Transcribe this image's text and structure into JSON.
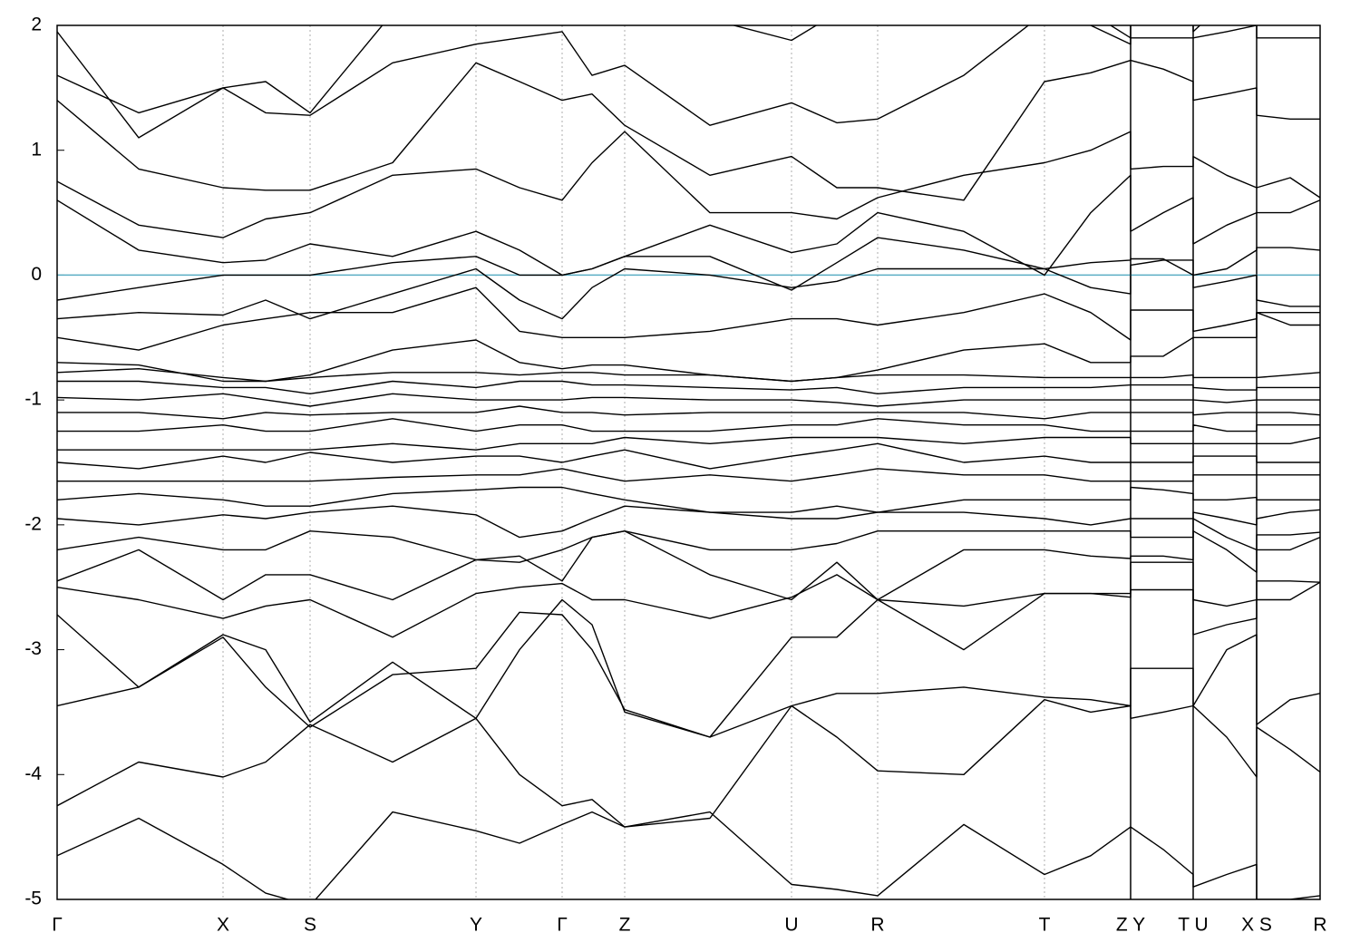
{
  "chart_data": {
    "type": "line",
    "x": [
      0,
      0.9,
      1.83,
      2.3,
      2.79,
      3.7,
      4.62,
      5.1,
      5.57,
      5.9,
      6.26,
      7.2,
      8.1,
      8.6,
      9.05,
      10.0,
      10.89,
      11.4,
      11.84,
      11.84,
      12.2,
      12.53,
      12.53,
      12.9,
      13.23,
      13.23,
      13.6,
      13.93
    ],
    "xlim": [
      0,
      13.93
    ],
    "xticks": [
      {
        "value": 0,
        "label": "Γ"
      },
      {
        "value": 1.83,
        "label": "X"
      },
      {
        "value": 2.79,
        "label": "S"
      },
      {
        "value": 4.62,
        "label": "Y"
      },
      {
        "value": 5.57,
        "label": "Γ"
      },
      {
        "value": 6.26,
        "label": "Z"
      },
      {
        "value": 8.1,
        "label": "U"
      },
      {
        "value": 9.05,
        "label": "R"
      },
      {
        "value": 10.89,
        "label": "T"
      },
      {
        "value": 11.84,
        "label": "Z Y"
      },
      {
        "value": 12.53,
        "label": "T U"
      },
      {
        "value": 13.23,
        "label": "X S"
      },
      {
        "value": 13.93,
        "label": "R"
      }
    ],
    "breaks": [
      11.84,
      12.53,
      13.23
    ],
    "ylim": [
      -5,
      2
    ],
    "yticks": [
      -5,
      -4,
      -3,
      -2,
      -1,
      0,
      1,
      2
    ],
    "grid": true,
    "hline": {
      "value": 0,
      "color": "#5aaec4"
    },
    "series": [
      {
        "color": "#000000",
        "values": [
          -4.65,
          -4.35,
          -4.72,
          -4.95,
          -5.05,
          -4.3,
          -4.45,
          -4.55,
          -4.4,
          -4.3,
          -4.42,
          -4.3,
          -4.88,
          -4.92,
          -4.97,
          -4.4,
          -4.8,
          -4.65,
          -4.42,
          -4.42,
          -4.6,
          -4.8,
          -4.9,
          -4.8,
          -4.72,
          -5.0,
          -5.0,
          -4.97
        ]
      },
      {
        "color": "#000000",
        "values": [
          -4.25,
          -3.9,
          -4.02,
          -3.9,
          -3.6,
          -3.9,
          -3.55,
          -4.0,
          -4.25,
          -4.2,
          -4.42,
          -4.35,
          -3.45,
          -3.7,
          -3.97,
          -4.0,
          -3.4,
          -3.5,
          -3.45,
          -3.55,
          -3.5,
          -3.45,
          -3.45,
          -3.0,
          -2.88,
          -3.6,
          -3.4,
          -3.35
        ]
      },
      {
        "color": "#000000",
        "values": [
          -3.45,
          -3.3,
          -2.9,
          -3.3,
          -3.62,
          -3.2,
          -3.15,
          -2.7,
          -2.72,
          -3.0,
          -3.48,
          -3.7,
          -3.45,
          -3.35,
          -3.35,
          -3.3,
          -3.38,
          -3.4,
          -3.45,
          -3.15,
          -3.15,
          -3.15,
          -3.45,
          -3.7,
          -4.02,
          -3.62,
          -3.8,
          -3.98
        ]
      },
      {
        "color": "#000000",
        "values": [
          -2.72,
          -3.3,
          -2.88,
          -3.0,
          -3.58,
          -3.1,
          -3.55,
          -3.0,
          -2.6,
          -2.8,
          -3.5,
          -3.7,
          -2.9,
          -2.9,
          -2.6,
          -3.0,
          -2.55,
          -2.55,
          -2.55,
          -2.52,
          -2.52,
          -2.52,
          -2.88,
          -2.8,
          -2.75,
          -2.45,
          -2.45,
          -2.46
        ]
      },
      {
        "color": "#000000",
        "values": [
          -2.5,
          -2.6,
          -2.75,
          -2.65,
          -2.6,
          -2.9,
          -2.55,
          -2.5,
          -2.47,
          -2.6,
          -2.6,
          -2.75,
          -2.58,
          -2.4,
          -2.6,
          -2.65,
          -2.55,
          -2.55,
          -2.58,
          -2.3,
          -2.3,
          -2.3,
          -2.6,
          -2.65,
          -2.6,
          -2.6,
          -2.6,
          -2.46
        ]
      },
      {
        "color": "#000000",
        "values": [
          -2.45,
          -2.2,
          -2.6,
          -2.4,
          -2.4,
          -2.6,
          -2.28,
          -2.25,
          -2.45,
          -2.1,
          -2.05,
          -2.4,
          -2.6,
          -2.3,
          -2.6,
          -2.2,
          -2.2,
          -2.25,
          -2.27,
          -2.25,
          -2.25,
          -2.28,
          -2.05,
          -2.2,
          -2.38,
          -2.2,
          -2.2,
          -2.1
        ]
      },
      {
        "color": "#000000",
        "values": [
          -2.2,
          -2.1,
          -2.2,
          -2.2,
          -2.05,
          -2.1,
          -2.28,
          -2.3,
          -2.2,
          -2.1,
          -2.05,
          -2.2,
          -2.2,
          -2.15,
          -2.05,
          -2.05,
          -2.05,
          -2.05,
          -2.05,
          -2.1,
          -2.1,
          -2.1,
          -1.95,
          -2.1,
          -2.2,
          -2.08,
          -2.08,
          -2.06
        ]
      },
      {
        "color": "#000000",
        "values": [
          -1.95,
          -2.0,
          -1.92,
          -1.95,
          -1.9,
          -1.85,
          -1.92,
          -2.1,
          -2.05,
          -1.95,
          -1.85,
          -1.9,
          -1.95,
          -1.95,
          -1.9,
          -1.9,
          -1.95,
          -2.0,
          -1.95,
          -1.95,
          -1.95,
          -1.95,
          -1.9,
          -1.95,
          -2.0,
          -1.95,
          -1.9,
          -1.88
        ]
      },
      {
        "color": "#000000",
        "values": [
          -1.8,
          -1.75,
          -1.8,
          -1.85,
          -1.85,
          -1.75,
          -1.72,
          -1.7,
          -1.7,
          -1.75,
          -1.8,
          -1.9,
          -1.9,
          -1.85,
          -1.9,
          -1.8,
          -1.8,
          -1.8,
          -1.8,
          -1.7,
          -1.72,
          -1.75,
          -1.8,
          -1.8,
          -1.78,
          -1.8,
          -1.8,
          -1.8
        ]
      },
      {
        "color": "#000000",
        "values": [
          -1.65,
          -1.65,
          -1.65,
          -1.65,
          -1.65,
          -1.62,
          -1.6,
          -1.6,
          -1.55,
          -1.6,
          -1.65,
          -1.6,
          -1.65,
          -1.6,
          -1.55,
          -1.6,
          -1.6,
          -1.65,
          -1.65,
          -1.65,
          -1.65,
          -1.65,
          -1.6,
          -1.6,
          -1.6,
          -1.6,
          -1.6,
          -1.6
        ]
      },
      {
        "color": "#000000",
        "values": [
          -1.5,
          -1.55,
          -1.45,
          -1.5,
          -1.42,
          -1.5,
          -1.45,
          -1.45,
          -1.5,
          -1.45,
          -1.4,
          -1.55,
          -1.45,
          -1.4,
          -1.35,
          -1.5,
          -1.45,
          -1.5,
          -1.5,
          -1.5,
          -1.5,
          -1.5,
          -1.45,
          -1.45,
          -1.45,
          -1.5,
          -1.5,
          -1.5
        ]
      },
      {
        "color": "#000000",
        "values": [
          -1.4,
          -1.4,
          -1.4,
          -1.4,
          -1.4,
          -1.35,
          -1.4,
          -1.35,
          -1.35,
          -1.35,
          -1.3,
          -1.35,
          -1.3,
          -1.3,
          -1.3,
          -1.35,
          -1.3,
          -1.3,
          -1.3,
          -1.35,
          -1.35,
          -1.35,
          -1.35,
          -1.35,
          -1.35,
          -1.35,
          -1.35,
          -1.3
        ]
      },
      {
        "color": "#000000",
        "values": [
          -1.25,
          -1.25,
          -1.2,
          -1.25,
          -1.25,
          -1.15,
          -1.25,
          -1.2,
          -1.2,
          -1.25,
          -1.25,
          -1.25,
          -1.2,
          -1.2,
          -1.15,
          -1.2,
          -1.2,
          -1.25,
          -1.25,
          -1.25,
          -1.25,
          -1.25,
          -1.2,
          -1.25,
          -1.25,
          -1.2,
          -1.2,
          -1.2
        ]
      },
      {
        "color": "#000000",
        "values": [
          -1.1,
          -1.1,
          -1.15,
          -1.1,
          -1.12,
          -1.1,
          -1.1,
          -1.05,
          -1.1,
          -1.1,
          -1.12,
          -1.1,
          -1.1,
          -1.1,
          -1.1,
          -1.1,
          -1.15,
          -1.1,
          -1.1,
          -1.1,
          -1.1,
          -1.1,
          -1.12,
          -1.1,
          -1.1,
          -1.1,
          -1.1,
          -1.12
        ]
      },
      {
        "color": "#000000",
        "values": [
          -0.98,
          -1.0,
          -0.95,
          -1.0,
          -1.05,
          -0.95,
          -1.0,
          -1.0,
          -1.0,
          -0.98,
          -0.98,
          -1.0,
          -1.0,
          -1.02,
          -1.05,
          -1.0,
          -1.0,
          -1.0,
          -1.0,
          -1.0,
          -1.0,
          -1.0,
          -1.0,
          -1.02,
          -1.0,
          -1.0,
          -1.0,
          -1.0
        ]
      },
      {
        "color": "#000000",
        "values": [
          -0.85,
          -0.85,
          -0.9,
          -0.9,
          -0.95,
          -0.85,
          -0.9,
          -0.85,
          -0.85,
          -0.88,
          -0.88,
          -0.9,
          -0.92,
          -0.9,
          -0.95,
          -0.9,
          -0.9,
          -0.9,
          -0.88,
          -0.88,
          -0.88,
          -0.88,
          -0.9,
          -0.92,
          -0.92,
          -0.9,
          -0.9,
          -0.9
        ]
      },
      {
        "color": "#000000",
        "values": [
          -0.78,
          -0.75,
          -0.82,
          -0.85,
          -0.82,
          -0.78,
          -0.78,
          -0.8,
          -0.78,
          -0.78,
          -0.8,
          -0.8,
          -0.85,
          -0.82,
          -0.8,
          -0.8,
          -0.82,
          -0.82,
          -0.82,
          -0.82,
          -0.82,
          -0.8,
          -0.82,
          -0.82,
          -0.82,
          -0.82,
          -0.8,
          -0.78
        ]
      },
      {
        "color": "#000000",
        "values": [
          -0.7,
          -0.72,
          -0.85,
          -0.85,
          -0.8,
          -0.6,
          -0.52,
          -0.7,
          -0.75,
          -0.72,
          -0.72,
          -0.8,
          -0.85,
          -0.82,
          -0.76,
          -0.6,
          -0.55,
          -0.7,
          -0.7,
          -0.65,
          -0.65,
          -0.5,
          -0.5,
          -0.5,
          -0.5,
          -0.3,
          -0.3,
          -0.3
        ]
      },
      {
        "color": "#000000",
        "values": [
          -0.5,
          -0.6,
          -0.4,
          -0.35,
          -0.3,
          -0.3,
          -0.1,
          -0.45,
          -0.5,
          -0.5,
          -0.5,
          -0.45,
          -0.35,
          -0.35,
          -0.4,
          -0.3,
          -0.15,
          -0.3,
          -0.52,
          -0.28,
          -0.28,
          -0.28,
          -0.45,
          -0.4,
          -0.35,
          -0.3,
          -0.4,
          -0.4
        ]
      },
      {
        "color": "#000000",
        "values": [
          -0.35,
          -0.3,
          -0.32,
          -0.2,
          -0.35,
          -0.15,
          0.05,
          -0.2,
          -0.35,
          -0.1,
          0.05,
          0.0,
          -0.1,
          -0.05,
          0.05,
          0.05,
          0.05,
          -0.1,
          -0.15,
          0.08,
          0.12,
          0.12,
          -0.1,
          -0.05,
          0.0,
          -0.2,
          -0.25,
          -0.25
        ]
      },
      {
        "color": "#000000",
        "values": [
          -0.2,
          -0.1,
          0.0,
          0.0,
          0.0,
          0.1,
          0.15,
          0.0,
          0.0,
          0.05,
          0.15,
          0.15,
          -0.12,
          0.1,
          0.3,
          0.2,
          0.05,
          0.1,
          0.12,
          0.13,
          0.13,
          0.0,
          0.0,
          0.05,
          0.2,
          0.22,
          0.22,
          0.2
        ]
      },
      {
        "color": "#000000",
        "values": [
          0.6,
          0.2,
          0.1,
          0.12,
          0.25,
          0.15,
          0.35,
          0.2,
          0.0,
          0.05,
          0.15,
          0.4,
          0.18,
          0.25,
          0.5,
          0.35,
          0.0,
          0.5,
          0.8,
          0.35,
          0.5,
          0.62,
          0.25,
          0.4,
          0.5,
          0.5,
          0.5,
          0.6
        ]
      },
      {
        "color": "#000000",
        "values": [
          0.75,
          0.4,
          0.3,
          0.45,
          0.5,
          0.8,
          0.85,
          0.7,
          0.6,
          0.9,
          1.15,
          0.5,
          0.5,
          0.45,
          0.62,
          0.8,
          0.9,
          1.0,
          1.15,
          0.85,
          0.87,
          0.87,
          0.95,
          0.8,
          0.7,
          0.7,
          0.78,
          0.62
        ]
      },
      {
        "color": "#000000",
        "values": [
          1.4,
          0.85,
          0.7,
          0.68,
          0.68,
          0.9,
          1.7,
          1.55,
          1.4,
          1.45,
          1.2,
          0.8,
          0.95,
          0.7,
          0.7,
          0.6,
          1.55,
          1.62,
          1.72,
          1.72,
          1.65,
          1.55,
          1.4,
          1.45,
          1.5,
          1.28,
          1.25,
          1.25
        ]
      },
      {
        "color": "#000000",
        "values": [
          1.6,
          1.3,
          1.5,
          1.3,
          1.28,
          1.7,
          1.85,
          1.9,
          1.95,
          1.6,
          1.68,
          1.2,
          1.38,
          1.22,
          1.25,
          1.6,
          2.1,
          2.0,
          1.85,
          1.9,
          1.9,
          1.9,
          1.9,
          1.95,
          2.0,
          1.9,
          1.9,
          1.9
        ]
      },
      {
        "color": "#000000",
        "values": [
          1.95,
          1.1,
          1.5,
          1.55,
          1.3,
          2.1,
          2.3,
          2.1,
          2.0,
          2.1,
          2.1,
          2.05,
          1.88,
          2.1,
          2.3,
          2.3,
          2.3,
          2.1,
          1.9,
          2.3,
          2.3,
          2.3,
          1.95,
          2.2,
          2.3,
          2.3,
          2.3,
          2.3
        ]
      }
    ]
  }
}
